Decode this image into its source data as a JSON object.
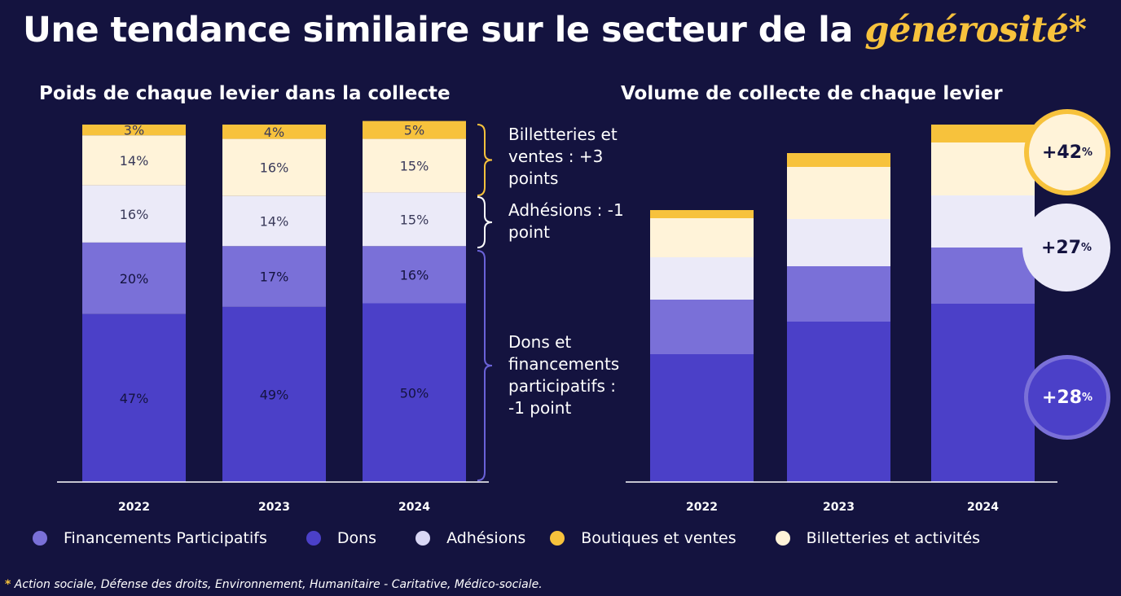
{
  "title": {
    "main": "Une tendance similaire sur le secteur de la ",
    "highlight": "générosité*"
  },
  "colors": {
    "background": "#14133f",
    "Dons": "#4b40c8",
    "Financements Participatifs": "#7a70d8",
    "Adhésions": "#ebeaf8",
    "Billetteries et activités": "#fff3d9",
    "Boutiques et ventes": "#f7c23c"
  },
  "chart_data": [
    {
      "type": "bar",
      "stacked": true,
      "title": "Poids de chaque levier dans la collecte",
      "categories": [
        "2022",
        "2023",
        "2024"
      ],
      "ylim": [
        0,
        100
      ],
      "grid": false,
      "series": [
        {
          "name": "Dons",
          "values": [
            47,
            49,
            50
          ],
          "labels": [
            "47%",
            "49%",
            "50%"
          ]
        },
        {
          "name": "Financements Participatifs",
          "values": [
            20,
            17,
            16
          ],
          "labels": [
            "20%",
            "17%",
            "16%"
          ]
        },
        {
          "name": "Adhésions",
          "values": [
            16,
            14,
            15
          ],
          "labels": [
            "16%",
            "14%",
            "15%"
          ]
        },
        {
          "name": "Billetteries et activités",
          "values": [
            14,
            16,
            15
          ],
          "labels": [
            "14%",
            "16%",
            "15%"
          ]
        },
        {
          "name": "Boutiques et ventes",
          "values": [
            3,
            4,
            5
          ],
          "labels": [
            "3%",
            "4%",
            "5%"
          ]
        }
      ]
    },
    {
      "type": "bar",
      "stacked": true,
      "title": "Volume de collecte de chaque levier",
      "categories": [
        "2022",
        "2023",
        "2024"
      ],
      "grid": false,
      "series": [
        {
          "name": "Dons",
          "values": [
            157,
            197,
            219
          ]
        },
        {
          "name": "Financements Participatifs",
          "values": [
            67,
            68,
            69
          ]
        },
        {
          "name": "Adhésions",
          "values": [
            52,
            58,
            64
          ]
        },
        {
          "name": "Billetteries et activités",
          "values": [
            48,
            64,
            65
          ]
        },
        {
          "name": "Boutiques et ventes",
          "values": [
            10,
            17,
            22
          ]
        }
      ]
    }
  ],
  "annotations": {
    "billetteries": [
      "Billetteries et",
      "ventes : +3",
      "points"
    ],
    "adhesions": [
      "Adhésions : -1",
      "point"
    ],
    "dons": [
      "Dons et",
      "financements",
      "participatifs :",
      "-1 point"
    ]
  },
  "badges": [
    {
      "value": "+42",
      "unit": "%"
    },
    {
      "value": "+27",
      "unit": "%"
    },
    {
      "value": "+28",
      "unit": "%"
    }
  ],
  "legend": [
    {
      "label": "Financements Participatifs",
      "color": "#7a70d8"
    },
    {
      "label": "Dons",
      "color": "#4b40c8"
    },
    {
      "label": "Adhésions",
      "color": "#d9d7f5"
    },
    {
      "label": "Boutiques et ventes",
      "color": "#f7c23c"
    },
    {
      "label": "Billetteries et activités",
      "color": "#fff3d9"
    }
  ],
  "footnote": {
    "star": "*",
    "text": " Action sociale, Défense des droits, Environnement, Humanitaire - Caritative, Médico-sociale."
  }
}
